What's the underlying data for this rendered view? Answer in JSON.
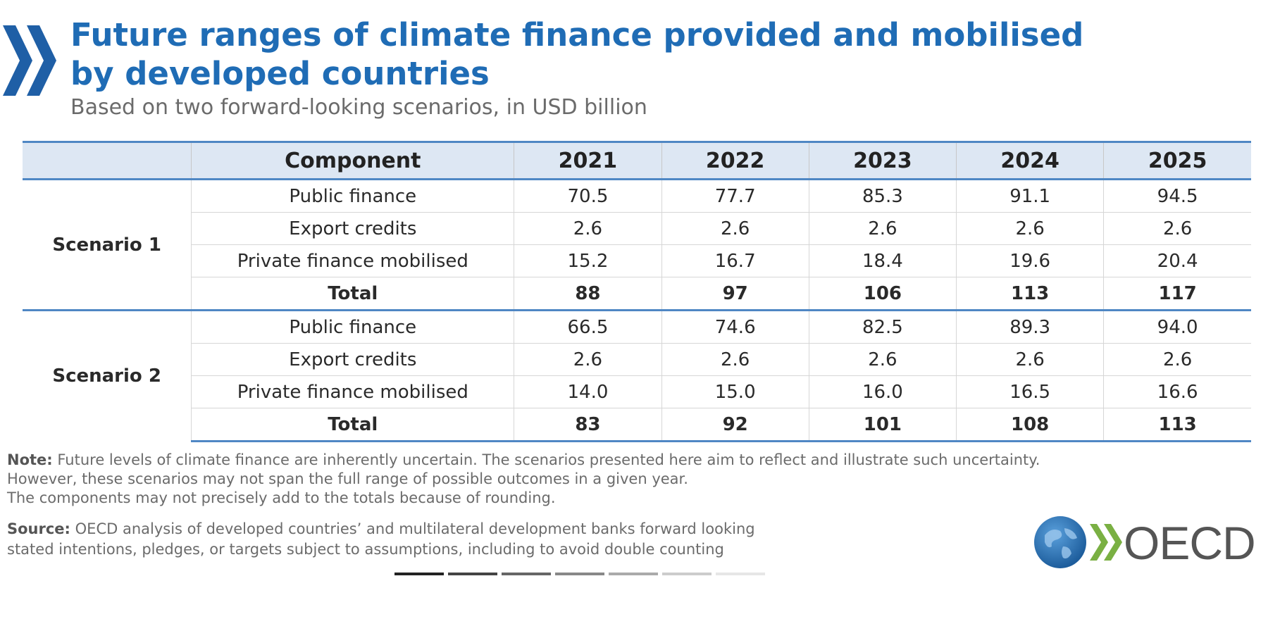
{
  "header": {
    "title": "Future ranges of climate finance provided and mobilised by developed countries",
    "subtitle": "Based on two forward-looking scenarios, in USD billion"
  },
  "table": {
    "component_header": "Component",
    "years": [
      "2021",
      "2022",
      "2023",
      "2024",
      "2025"
    ]
  },
  "chart_data": {
    "type": "table",
    "title": "Future ranges of climate finance provided and mobilised by developed countries",
    "subtitle": "Based on two forward-looking scenarios, in USD billion",
    "columns": [
      "Component",
      "2021",
      "2022",
      "2023",
      "2024",
      "2025"
    ],
    "scenarios": [
      {
        "name": "Scenario 1",
        "rows": [
          {
            "component": "Public finance",
            "values": [
              "70.5",
              "77.7",
              "85.3",
              "91.1",
              "94.5"
            ]
          },
          {
            "component": "Export credits",
            "values": [
              "2.6",
              "2.6",
              "2.6",
              "2.6",
              "2.6"
            ]
          },
          {
            "component": "Private finance mobilised",
            "values": [
              "15.2",
              "16.7",
              "18.4",
              "19.6",
              "20.4"
            ]
          },
          {
            "component": "Total",
            "values": [
              "88",
              "97",
              "106",
              "113",
              "117"
            ]
          }
        ]
      },
      {
        "name": "Scenario 2",
        "rows": [
          {
            "component": "Public finance",
            "values": [
              "66.5",
              "74.6",
              "82.5",
              "89.3",
              "94.0"
            ]
          },
          {
            "component": "Export credits",
            "values": [
              "2.6",
              "2.6",
              "2.6",
              "2.6",
              "2.6"
            ]
          },
          {
            "component": "Private finance mobilised",
            "values": [
              "14.0",
              "15.0",
              "16.0",
              "16.5",
              "16.6"
            ]
          },
          {
            "component": "Total",
            "values": [
              "83",
              "92",
              "101",
              "108",
              "113"
            ]
          }
        ]
      }
    ]
  },
  "footer": {
    "note_label": "Note:",
    "note_line1": "Future levels of climate finance are inherently uncertain. The scenarios presented here aim to reflect and illustrate such uncertainty.",
    "note_line2": "However, these scenarios may not span the full range of possible outcomes in a given year.",
    "note_line3": "The components may not precisely add to the totals because of rounding.",
    "source_label": "Source:",
    "source_line1": "OECD analysis of developed countries’ and multilateral development banks forward looking",
    "source_line2": "stated intentions, pledges, or targets subject to assumptions, including to avoid double counting",
    "logo_text": "OECD"
  },
  "colors": {
    "accent": "#1f6cb5",
    "header_fill": "#dde7f3",
    "rule": "#4f87c4"
  }
}
